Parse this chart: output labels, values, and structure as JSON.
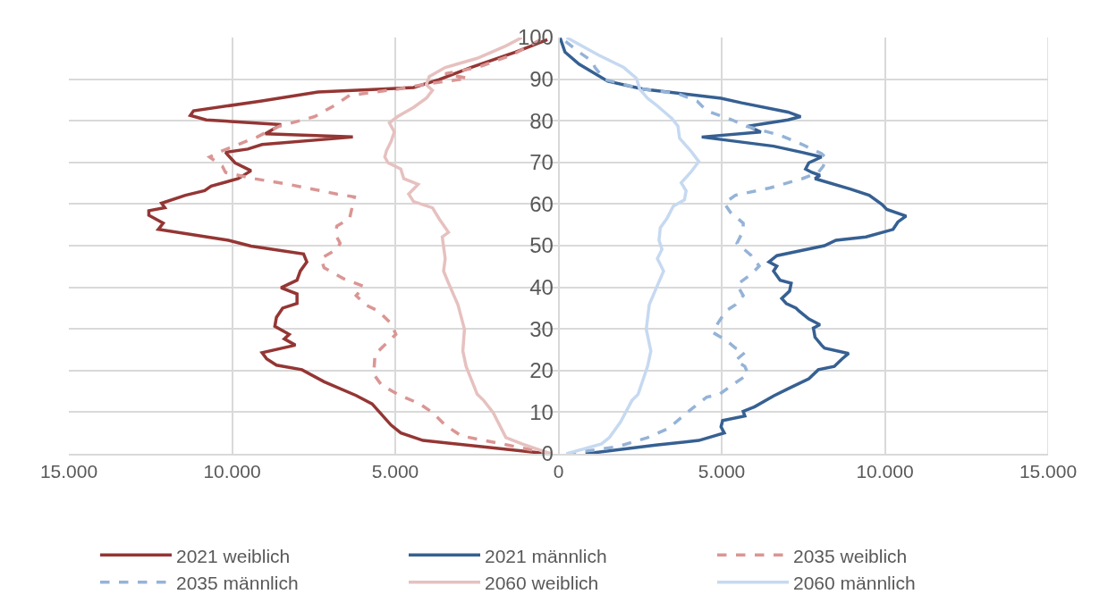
{
  "chart_data": {
    "type": "line",
    "marker": "none",
    "grid": true,
    "legend": "bottom",
    "xlim": [
      -15000,
      15000
    ],
    "xticks": [
      {
        "value": -15000,
        "label": "15.000"
      },
      {
        "value": -10000,
        "label": "10.000"
      },
      {
        "value": -5000,
        "label": "5.000"
      },
      0,
      {
        "value": 5000,
        "label": "5.000"
      },
      {
        "value": 10000,
        "label": "10.000"
      },
      {
        "value": 15000,
        "label": "15.000"
      }
    ],
    "ylim": [
      0,
      100
    ],
    "yticks": [
      0,
      10,
      20,
      30,
      40,
      50,
      60,
      70,
      80,
      90,
      100
    ],
    "series": [
      {
        "name": "2021 weiblich",
        "color": "#943634",
        "line_style": "solid",
        "x": [
          -300,
          -4150,
          -4830,
          -5130,
          -5710,
          -6200,
          -7180,
          -7860,
          -8640,
          -8940,
          -9080,
          -8060,
          -8400,
          -8250,
          -8690,
          -8640,
          -8450,
          -8010,
          -8010,
          -8500,
          -8010,
          -7910,
          -7710,
          -7810,
          -9420,
          -10110,
          -12260,
          -12110,
          -12550,
          -12550,
          -12060,
          -12160,
          -11430,
          -10840,
          -10640,
          -9810,
          -9420,
          -9910,
          -10200,
          -9520,
          -9080,
          -6300,
          -8980,
          -8500,
          -10790,
          -11280,
          -11180,
          -9130,
          -7370,
          -5420,
          -4440,
          -3660,
          -2690,
          -1320,
          -340
        ],
        "values": [
          0,
          3.2,
          5,
          6.9,
          12,
          14,
          17.3,
          20.2,
          21.3,
          22.8,
          24.3,
          26.1,
          27.6,
          28.7,
          30.6,
          32.8,
          35,
          36.1,
          38.4,
          39.9,
          41.7,
          43.9,
          46.1,
          48,
          49.9,
          51.3,
          53.9,
          55.4,
          57.3,
          58.4,
          59.1,
          60.2,
          62.1,
          63.2,
          64.3,
          66.1,
          68,
          69.9,
          72.4,
          73.2,
          74.3,
          76.1,
          76.9,
          79.1,
          80.2,
          81.3,
          82.4,
          84.7,
          86.9,
          87.6,
          88,
          89.9,
          92.8,
          96.5,
          99.5
        ]
      },
      {
        "name": "2021 männlich",
        "color": "#366092",
        "line_style": "solid",
        "x": [
          830,
          2980,
          4300,
          5080,
          4980,
          5030,
          5710,
          5660,
          6010,
          6590,
          7080,
          7670,
          7960,
          8450,
          8690,
          8890,
          8150,
          8060,
          7860,
          7810,
          8010,
          7670,
          7370,
          7280,
          6980,
          6840,
          7080,
          7130,
          6790,
          6590,
          6690,
          6450,
          6690,
          7370,
          8150,
          8500,
          9420,
          10250,
          10400,
          10650,
          10060,
          9910,
          9520,
          8940,
          7860,
          8010,
          7760,
          7570,
          7670,
          8060,
          7470,
          6590,
          4390,
          6200,
          5810,
          7030,
          7420,
          7030,
          5610,
          4980,
          2590,
          1510,
          630,
          200,
          50
        ],
        "values": [
          0,
          2.1,
          3.2,
          5,
          6.5,
          8,
          9.1,
          10.2,
          11.3,
          13.9,
          15.8,
          18,
          20.2,
          21,
          22.8,
          24.1,
          25.4,
          26.1,
          28,
          30.2,
          31,
          32.4,
          34.3,
          35,
          36.1,
          37.3,
          39.1,
          41,
          41.7,
          43.9,
          45.1,
          46.1,
          47.6,
          48.7,
          50,
          51.3,
          52.1,
          53.9,
          55.7,
          57.1,
          58.7,
          59.9,
          62.1,
          63.6,
          66.1,
          66.9,
          67.6,
          68.4,
          69.9,
          71.3,
          72.4,
          73.9,
          76.1,
          77.3,
          78.7,
          80.2,
          81,
          82.1,
          84.3,
          85.4,
          87.6,
          89.5,
          93.6,
          96.5,
          99.9
        ]
      },
      {
        "name": "2035 weiblich",
        "color": "#da9694",
        "line_style": "dashed",
        "x": [
          -240,
          -2000,
          -2980,
          -3470,
          -3860,
          -4250,
          -4930,
          -5420,
          -5660,
          -5620,
          -5220,
          -4980,
          -5130,
          -5520,
          -5910,
          -6200,
          -5960,
          -6590,
          -7180,
          -7280,
          -6790,
          -6690,
          -6840,
          -6790,
          -6400,
          -6250,
          -6790,
          -8250,
          -9330,
          -10200,
          -10300,
          -10690,
          -10300,
          -9230,
          -8940,
          -8540,
          -7470,
          -6880,
          -6400,
          -4930,
          -4150,
          -2780,
          -3470,
          -2490,
          -1420,
          -540
        ],
        "values": [
          0,
          2.8,
          4.3,
          6.9,
          9.9,
          12,
          14.3,
          16.5,
          19.1,
          23.9,
          26.9,
          28.7,
          31.3,
          34.3,
          35.8,
          38,
          40.2,
          42.1,
          44.7,
          46.9,
          49.1,
          50.6,
          52.8,
          54.7,
          56.5,
          61.7,
          62.4,
          64.7,
          66.1,
          67.6,
          69.1,
          71.3,
          72.8,
          76.1,
          77.3,
          78.7,
          81,
          83.6,
          86.1,
          87.6,
          88.7,
          90.2,
          91.3,
          92.8,
          95.8,
          99.5
        ]
      },
      {
        "name": "2035 männlich",
        "color": "#95b3d7",
        "line_style": "dashed",
        "x": [
          250,
          1810,
          2730,
          3370,
          4050,
          4540,
          4930,
          5320,
          5810,
          5710,
          5420,
          5710,
          5420,
          5130,
          4740,
          4880,
          5130,
          5420,
          5660,
          5470,
          5910,
          6150,
          5910,
          5470,
          5660,
          5660,
          5270,
          5080,
          5420,
          6490,
          7470,
          7960,
          8110,
          8210,
          8060,
          7470,
          6790,
          5760,
          5320,
          4540,
          4250,
          3660,
          2590,
          1420,
          1120,
          1030,
          630,
          150
        ],
        "values": [
          0,
          1.7,
          3.9,
          6.1,
          10.6,
          13.6,
          14.3,
          16.5,
          19.1,
          21,
          22.4,
          24.3,
          25.4,
          27.3,
          29.1,
          31.3,
          34.3,
          35.8,
          38,
          40.6,
          43.2,
          45.1,
          47.6,
          50.6,
          53.6,
          55.4,
          58,
          60.2,
          62.1,
          63.9,
          66.1,
          67.6,
          69.1,
          71,
          72.1,
          74.3,
          76.5,
          78.7,
          80.2,
          82.4,
          84.7,
          86.5,
          87.6,
          89.9,
          92.8,
          94.3,
          96.5,
          99.5
        ]
      },
      {
        "name": "2060 weiblich",
        "color": "#e6c1bf",
        "line_style": "solid",
        "x": [
          -240,
          -1120,
          -1610,
          -2000,
          -2290,
          -2490,
          -2830,
          -2930,
          -2880,
          -3080,
          -3370,
          -3520,
          -3470,
          -3560,
          -3370,
          -3660,
          -3860,
          -4440,
          -4590,
          -4300,
          -4740,
          -4830,
          -5220,
          -5320,
          -5270,
          -5130,
          -5030,
          -5180,
          -4930,
          -4440,
          -4050,
          -3860,
          -4050,
          -3960,
          -3470,
          -2490,
          -1610,
          -1120
        ],
        "values": [
          0,
          2.4,
          3.9,
          9.9,
          12.8,
          14.3,
          21,
          24.7,
          29.9,
          35.8,
          41,
          43.9,
          46.9,
          52.1,
          53.2,
          56.5,
          59.1,
          60.6,
          62.4,
          64.7,
          66.1,
          68.4,
          69.9,
          71.3,
          72.8,
          75,
          77.3,
          79.5,
          81,
          83.2,
          85.4,
          87.3,
          88.7,
          90.6,
          92.8,
          95,
          98,
          100
        ]
      },
      {
        "name": "2060 männlich",
        "color": "#c6d9f1",
        "line_style": "solid",
        "x": [
          250,
          1320,
          1560,
          1900,
          2250,
          2440,
          2730,
          2830,
          2690,
          2780,
          2980,
          3220,
          3030,
          3170,
          3080,
          3120,
          3320,
          3520,
          3860,
          3910,
          3760,
          4050,
          4300,
          4050,
          3710,
          3660,
          3470,
          2980,
          2730,
          2490,
          2390,
          2000,
          1220,
          250
        ],
        "values": [
          0,
          2.4,
          3.9,
          7.6,
          12.8,
          14.3,
          21,
          24.7,
          29.9,
          35.8,
          39.5,
          43.9,
          46.9,
          49.1,
          51.3,
          54.3,
          56.5,
          59.5,
          61,
          63.2,
          65.1,
          67.6,
          70.2,
          72.8,
          75.8,
          78.7,
          80.6,
          83.9,
          85.4,
          87.6,
          90.2,
          92.8,
          95.8,
          100
        ]
      }
    ]
  }
}
